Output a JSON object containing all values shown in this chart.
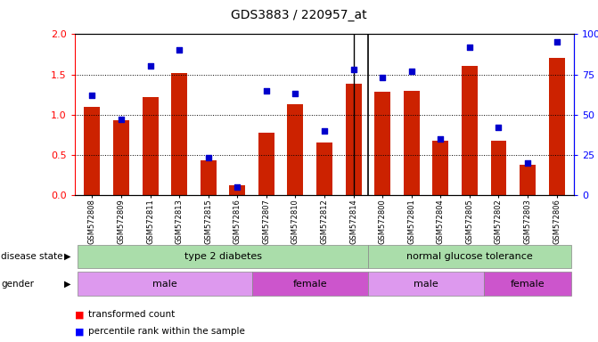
{
  "title": "GDS3883 / 220957_at",
  "samples": [
    "GSM572808",
    "GSM572809",
    "GSM572811",
    "GSM572813",
    "GSM572815",
    "GSM572816",
    "GSM572807",
    "GSM572810",
    "GSM572812",
    "GSM572814",
    "GSM572800",
    "GSM572801",
    "GSM572804",
    "GSM572805",
    "GSM572802",
    "GSM572803",
    "GSM572806"
  ],
  "bar_values": [
    1.1,
    0.93,
    1.22,
    1.52,
    0.43,
    0.12,
    0.77,
    1.13,
    0.65,
    1.38,
    1.28,
    1.3,
    0.68,
    1.6,
    0.68,
    0.38,
    1.7
  ],
  "dot_values": [
    62,
    47,
    80,
    90,
    23,
    5,
    65,
    63,
    40,
    78,
    73,
    77,
    35,
    92,
    42,
    20,
    95
  ],
  "ylim_left": [
    0,
    2
  ],
  "ylim_right": [
    0,
    100
  ],
  "yticks_left": [
    0,
    0.5,
    1.0,
    1.5,
    2.0
  ],
  "yticks_right": [
    0,
    25,
    50,
    75,
    100
  ],
  "bar_color": "#cc2200",
  "dot_color": "#0000cc",
  "t2d_color": "#aaddaa",
  "ngt_color": "#aaddaa",
  "male_color": "#dd99ee",
  "female_color": "#cc55cc",
  "legend_items": [
    "transformed count",
    "percentile rank within the sample"
  ],
  "divider_after": 9
}
